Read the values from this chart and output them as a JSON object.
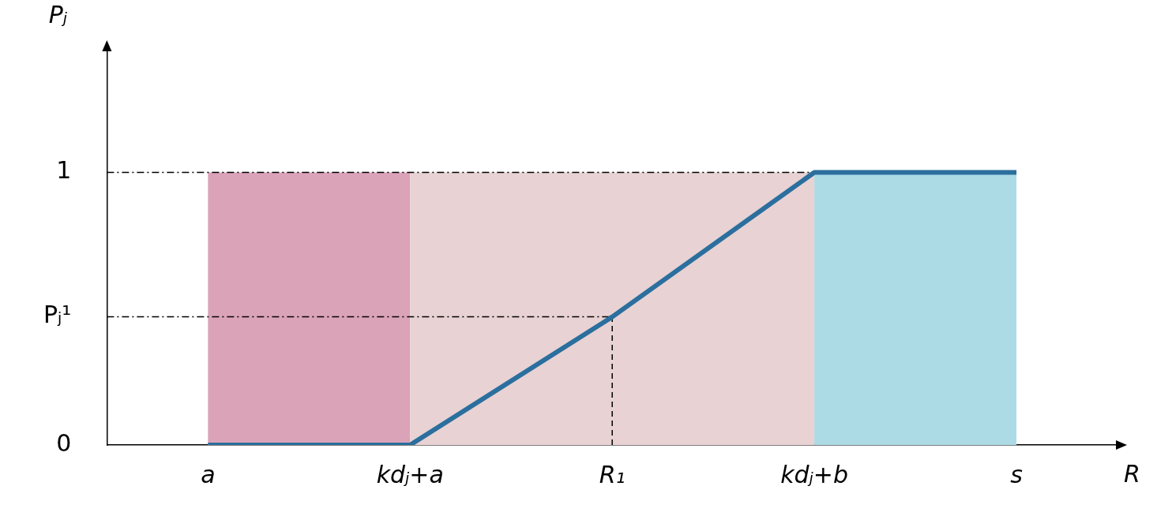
{
  "chart_data": {
    "type": "line",
    "xlabel": "R",
    "ylabel": "Pⱼ",
    "categories": [
      "a",
      "kdⱼ+a",
      "R₁",
      "kdⱼ+b",
      "s"
    ],
    "series": [
      {
        "color": "#2b6f9e",
        "values": [
          0,
          0,
          0.47,
          1,
          1
        ]
      }
    ],
    "ylim": [
      0,
      1.45
    ],
    "yticks": [
      0,
      {
        "value": 0.47,
        "label": "Pⱼ¹"
      },
      1
    ],
    "bands": [
      {
        "axis": "x",
        "from": "a",
        "to": "kdⱼ+a",
        "color": "#dba3b8"
      },
      {
        "axis": "x",
        "from": "kdⱼ+a",
        "to": "kdⱼ+b",
        "color": "#e8d2d3"
      },
      {
        "axis": "x",
        "from": "kdⱼ+b",
        "to": "s",
        "color": "#acdbe5"
      }
    ],
    "ref_lines": [
      {
        "axis": "y",
        "value": 1,
        "line_style": "dashdot"
      },
      {
        "axis": "y",
        "value": 0.47,
        "line_style": "dashdot"
      },
      {
        "axis": "x",
        "value": "R₁",
        "line_style": "dashed"
      }
    ],
    "grid": false,
    "legend": false
  }
}
